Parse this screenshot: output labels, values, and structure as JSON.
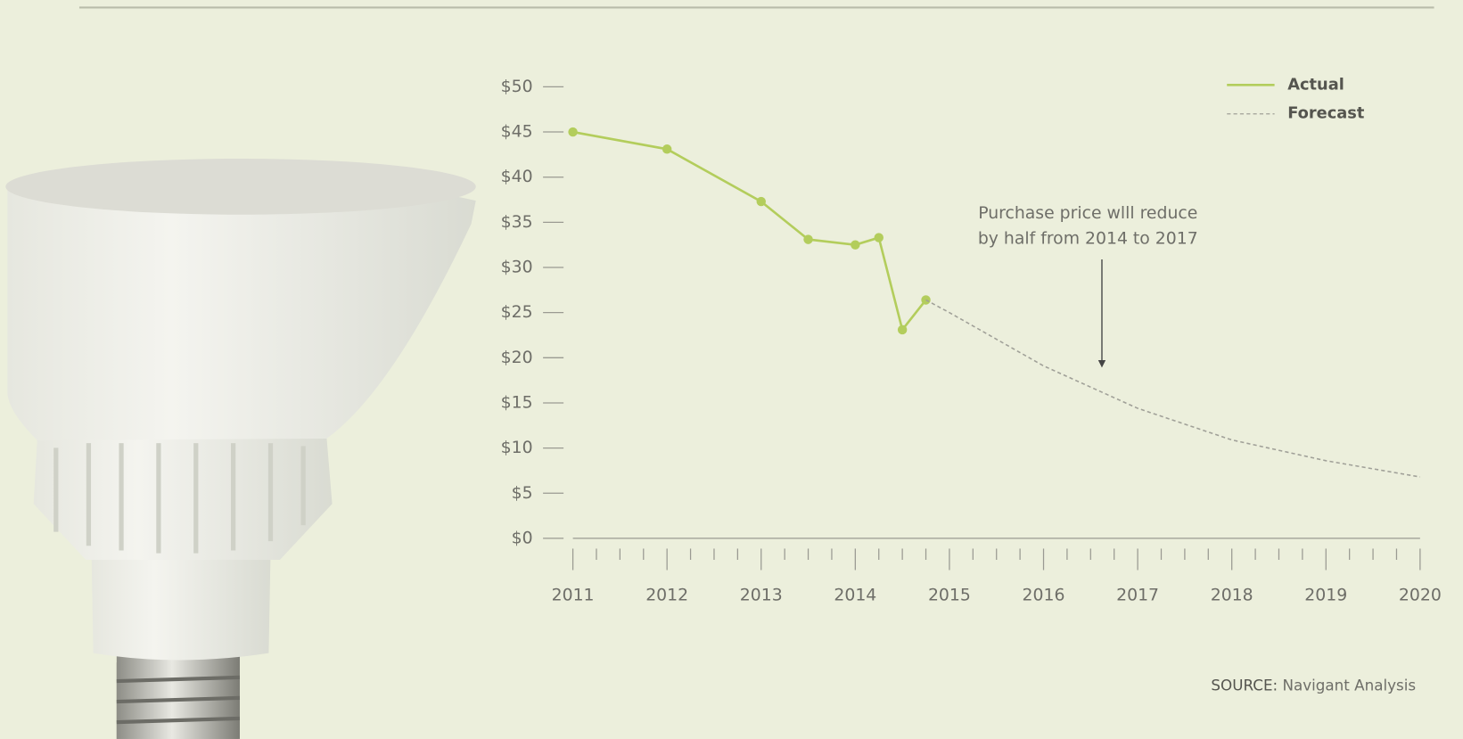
{
  "chart_data": {
    "type": "line",
    "annotation": [
      "Purchase price wlll reduce",
      "by half from 2014 to 2017"
    ],
    "source_label": "SOURCE:",
    "source": "Navigant Analysis",
    "legend": "top-right",
    "xlim": [
      2011,
      2020
    ],
    "xticks": [
      2011,
      2012,
      2013,
      2014,
      2015,
      2016,
      2017,
      2018,
      2019,
      2020
    ],
    "xminorticks": [
      2011.25,
      2011.5,
      2011.75,
      2012.25,
      2012.5,
      2012.75,
      2013.25,
      2013.5,
      2013.75,
      2014.25,
      2014.5,
      2014.75,
      2015.25,
      2015.5,
      2015.75,
      2016.25,
      2016.5,
      2016.75,
      2017.25,
      2017.5,
      2017.75,
      2018.25,
      2018.5,
      2018.75,
      2019.25,
      2019.5,
      2019.75
    ],
    "ylim": [
      0,
      50
    ],
    "yticks": [
      {
        "value": 0,
        "label": "$0"
      },
      {
        "value": 5,
        "label": "$5"
      },
      {
        "value": 10,
        "label": "$10"
      },
      {
        "value": 15,
        "label": "$15"
      },
      {
        "value": 20,
        "label": "$20"
      },
      {
        "value": 25,
        "label": "$25"
      },
      {
        "value": 30,
        "label": "$30"
      },
      {
        "value": 35,
        "label": "$35"
      },
      {
        "value": 40,
        "label": "$40"
      },
      {
        "value": 45,
        "label": "$45"
      },
      {
        "value": 50,
        "label": "$50"
      }
    ],
    "series": [
      {
        "name": "Actual",
        "color": "#b3cd5c",
        "style": "solid",
        "markers": true,
        "x": [
          2011,
          2012,
          2013,
          2013.5,
          2014,
          2014.25,
          2014.5,
          2014.75
        ],
        "values": [
          45,
          43.1,
          37.3,
          33.1,
          32.5,
          33.3,
          23.1,
          26.4
        ]
      },
      {
        "name": "Forecast",
        "color": "#a0a098",
        "style": "dashed",
        "markers": false,
        "x": [
          2014.75,
          2015,
          2016,
          2017,
          2018,
          2019,
          2020
        ],
        "values": [
          26.4,
          25.0,
          19.1,
          14.4,
          10.9,
          8.6,
          6.8
        ]
      }
    ]
  }
}
